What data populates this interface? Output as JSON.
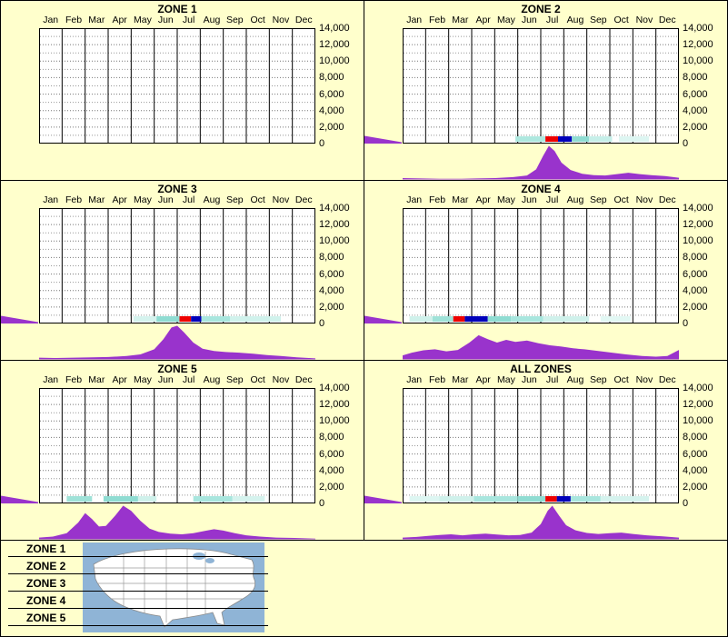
{
  "colors": {
    "background": "#FFFFCC",
    "curve_fill": "#9933CC",
    "heat_red": "#EE0000",
    "heat_blue": "#0000BB",
    "heat_teal": "#8FDCD2",
    "ocean": "#8FB4D6",
    "land": "#FFFFFF"
  },
  "legend": {
    "items": [
      "ZONE 1",
      "ZONE 2",
      "ZONE 3",
      "ZONE 4",
      "ZONE 5"
    ]
  },
  "chart_data": {
    "type": "area",
    "months": [
      "Jan",
      "Feb",
      "Mar",
      "Apr",
      "May",
      "Jun",
      "Jul",
      "Aug",
      "Sep",
      "Oct",
      "Nov",
      "Dec"
    ],
    "y_ticks": [
      "14,000",
      "12,000",
      "10,000",
      "8,000",
      "6,000",
      "4,000",
      "2,000",
      "0"
    ],
    "ylim": [
      0,
      14000
    ],
    "curve_y_units": "relative 0-1 of band height",
    "panels": [
      {
        "title": "ZONE 1",
        "curve": [],
        "heat_segments": [],
        "left_wedge": false
      },
      {
        "title": "ZONE 2",
        "curve": [
          [
            0,
            0.04
          ],
          [
            0.8,
            0.03
          ],
          [
            1.6,
            0.02
          ],
          [
            2.4,
            0.02
          ],
          [
            3.2,
            0.03
          ],
          [
            4,
            0.04
          ],
          [
            4.8,
            0.07
          ],
          [
            5.4,
            0.12
          ],
          [
            5.8,
            0.3
          ],
          [
            6.1,
            0.7
          ],
          [
            6.35,
            1.0
          ],
          [
            6.6,
            0.85
          ],
          [
            6.9,
            0.5
          ],
          [
            7.3,
            0.28
          ],
          [
            7.8,
            0.17
          ],
          [
            8.3,
            0.13
          ],
          [
            8.8,
            0.12
          ],
          [
            9.3,
            0.16
          ],
          [
            9.8,
            0.2
          ],
          [
            10.3,
            0.16
          ],
          [
            10.8,
            0.13
          ],
          [
            11.4,
            0.1
          ],
          [
            12,
            0.05
          ]
        ],
        "heat_segments": [
          [
            4.9,
            6.2,
            "#AEE8DF"
          ],
          [
            6.2,
            6.75,
            "#EE0000"
          ],
          [
            6.75,
            7.35,
            "#0000BB"
          ],
          [
            7.35,
            8.1,
            "#8FDCD2"
          ],
          [
            8.1,
            9.1,
            "#C6EFE9"
          ],
          [
            9.4,
            10.7,
            "#DDF6F2"
          ]
        ],
        "left_wedge": true
      },
      {
        "title": "ZONE 3",
        "curve": [
          [
            0,
            0.05
          ],
          [
            0.7,
            0.04
          ],
          [
            1.5,
            0.05
          ],
          [
            2.3,
            0.06
          ],
          [
            3,
            0.07
          ],
          [
            3.8,
            0.1
          ],
          [
            4.4,
            0.15
          ],
          [
            5,
            0.3
          ],
          [
            5.4,
            0.6
          ],
          [
            5.75,
            0.95
          ],
          [
            6,
            1.0
          ],
          [
            6.3,
            0.8
          ],
          [
            6.7,
            0.5
          ],
          [
            7.1,
            0.32
          ],
          [
            7.6,
            0.25
          ],
          [
            8.1,
            0.22
          ],
          [
            8.7,
            0.2
          ],
          [
            9.3,
            0.17
          ],
          [
            9.9,
            0.13
          ],
          [
            10.5,
            0.1
          ],
          [
            11.2,
            0.06
          ],
          [
            12,
            0.03
          ]
        ],
        "heat_segments": [
          [
            4.1,
            5.1,
            "#D5F3EE"
          ],
          [
            5.1,
            6.1,
            "#8FDCD2"
          ],
          [
            6.1,
            6.6,
            "#EE0000"
          ],
          [
            6.6,
            7.05,
            "#0000BB"
          ],
          [
            7.05,
            8.3,
            "#A8E6DE"
          ],
          [
            8.3,
            10.5,
            "#D0F2EC"
          ]
        ],
        "left_wedge": true
      },
      {
        "title": "ZONE 4",
        "curve": [
          [
            0,
            0.12
          ],
          [
            0.4,
            0.2
          ],
          [
            0.9,
            0.27
          ],
          [
            1.4,
            0.3
          ],
          [
            1.9,
            0.24
          ],
          [
            2.4,
            0.28
          ],
          [
            2.9,
            0.5
          ],
          [
            3.3,
            0.72
          ],
          [
            3.7,
            0.6
          ],
          [
            4.1,
            0.5
          ],
          [
            4.5,
            0.58
          ],
          [
            4.9,
            0.52
          ],
          [
            5.4,
            0.56
          ],
          [
            5.9,
            0.48
          ],
          [
            6.4,
            0.42
          ],
          [
            6.9,
            0.38
          ],
          [
            7.4,
            0.33
          ],
          [
            7.9,
            0.3
          ],
          [
            8.5,
            0.25
          ],
          [
            9.1,
            0.2
          ],
          [
            9.7,
            0.15
          ],
          [
            10.4,
            0.1
          ],
          [
            11,
            0.08
          ],
          [
            11.5,
            0.1
          ],
          [
            12,
            0.28
          ]
        ],
        "heat_segments": [
          [
            0.3,
            1.3,
            "#CFF1EB"
          ],
          [
            1.3,
            2.2,
            "#9FE2D8"
          ],
          [
            2.2,
            2.7,
            "#EE0000"
          ],
          [
            2.7,
            3.7,
            "#0000BB"
          ],
          [
            3.7,
            4.7,
            "#8FDCD2"
          ],
          [
            4.7,
            6.1,
            "#A8E6DE"
          ],
          [
            6.1,
            8.1,
            "#CFF1EB"
          ],
          [
            8.6,
            9.9,
            "#E2F8F4"
          ]
        ],
        "left_wedge": true
      },
      {
        "title": "ZONE 5",
        "curve": [
          [
            0,
            0.05
          ],
          [
            0.6,
            0.08
          ],
          [
            1.2,
            0.18
          ],
          [
            1.7,
            0.5
          ],
          [
            2,
            0.78
          ],
          [
            2.3,
            0.6
          ],
          [
            2.6,
            0.38
          ],
          [
            2.9,
            0.4
          ],
          [
            3.3,
            0.7
          ],
          [
            3.65,
            1.0
          ],
          [
            4,
            0.85
          ],
          [
            4.4,
            0.55
          ],
          [
            4.8,
            0.32
          ],
          [
            5.2,
            0.22
          ],
          [
            5.7,
            0.17
          ],
          [
            6.2,
            0.15
          ],
          [
            6.7,
            0.18
          ],
          [
            7.2,
            0.25
          ],
          [
            7.6,
            0.3
          ],
          [
            8,
            0.26
          ],
          [
            8.5,
            0.18
          ],
          [
            9,
            0.12
          ],
          [
            9.6,
            0.08
          ],
          [
            10.3,
            0.05
          ],
          [
            11.1,
            0.04
          ],
          [
            12,
            0.02
          ]
        ],
        "heat_segments": [
          [
            1.2,
            2.3,
            "#9FE2D8"
          ],
          [
            2.8,
            4.3,
            "#8FDCD2"
          ],
          [
            4.3,
            5.1,
            "#CFF1EB"
          ],
          [
            6.7,
            8.4,
            "#A8E6DE"
          ],
          [
            8.4,
            9.8,
            "#D5F3EE"
          ]
        ],
        "left_wedge": true
      },
      {
        "title": "ALL ZONES",
        "curve": [
          [
            0,
            0.05
          ],
          [
            0.6,
            0.07
          ],
          [
            1.1,
            0.1
          ],
          [
            1.6,
            0.13
          ],
          [
            2.1,
            0.15
          ],
          [
            2.6,
            0.12
          ],
          [
            3.1,
            0.15
          ],
          [
            3.6,
            0.17
          ],
          [
            4.1,
            0.14
          ],
          [
            4.6,
            0.12
          ],
          [
            5.1,
            0.13
          ],
          [
            5.6,
            0.2
          ],
          [
            6,
            0.45
          ],
          [
            6.3,
            0.85
          ],
          [
            6.5,
            1.0
          ],
          [
            6.8,
            0.7
          ],
          [
            7.1,
            0.42
          ],
          [
            7.5,
            0.27
          ],
          [
            8,
            0.19
          ],
          [
            8.5,
            0.16
          ],
          [
            9,
            0.18
          ],
          [
            9.5,
            0.2
          ],
          [
            10,
            0.16
          ],
          [
            10.6,
            0.12
          ],
          [
            11.3,
            0.09
          ],
          [
            12,
            0.05
          ]
        ],
        "heat_segments": [
          [
            0.3,
            1.6,
            "#DDF6F2"
          ],
          [
            1.6,
            3.1,
            "#CFF1EB"
          ],
          [
            3.1,
            5,
            "#A8E6DE"
          ],
          [
            5,
            6.2,
            "#8FDCD2"
          ],
          [
            6.2,
            6.7,
            "#EE0000"
          ],
          [
            6.7,
            7.3,
            "#0000BB"
          ],
          [
            7.3,
            8.6,
            "#A8E6DE"
          ],
          [
            8.6,
            10.7,
            "#D5F3EE"
          ]
        ],
        "left_wedge": true
      }
    ]
  }
}
